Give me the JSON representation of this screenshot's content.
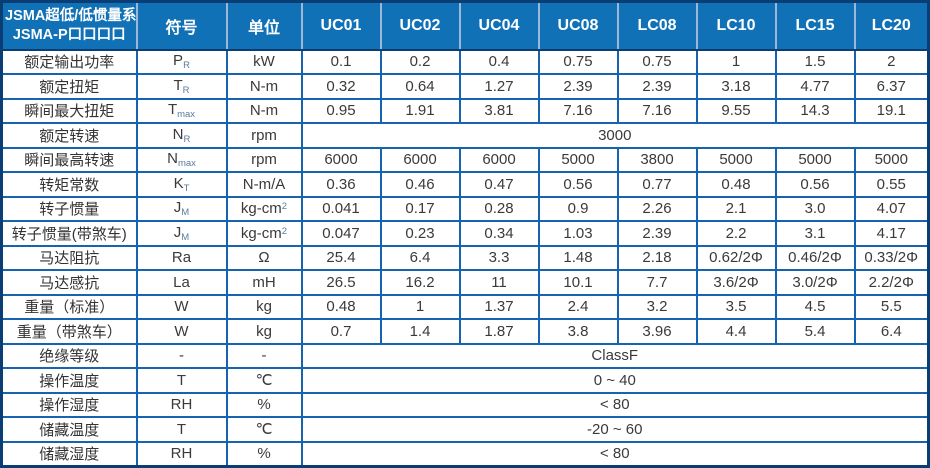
{
  "table": {
    "header": {
      "title_line1": "JSMA超低/低惯量系列",
      "title_line2": "JSMA-P口口口口",
      "symbol_col": "符号",
      "unit_col": "单位",
      "models": [
        "UC01",
        "UC02",
        "UC04",
        "UC08",
        "LC08",
        "LC10",
        "LC15",
        "LC20"
      ]
    },
    "rows": [
      {
        "param": "额定输出功率",
        "symbol": {
          "base": "P",
          "sub": "R"
        },
        "unit": "kW",
        "values": [
          "0.1",
          "0.2",
          "0.4",
          "0.75",
          "0.75",
          "1",
          "1.5",
          "2"
        ]
      },
      {
        "param": "额定扭矩",
        "symbol": {
          "base": "T",
          "sub": "R"
        },
        "unit": "N-m",
        "values": [
          "0.32",
          "0.64",
          "1.27",
          "2.39",
          "2.39",
          "3.18",
          "4.77",
          "6.37"
        ]
      },
      {
        "param": "瞬间最大扭矩",
        "symbol": {
          "base": "T",
          "sub": "max"
        },
        "unit": "N-m",
        "values": [
          "0.95",
          "1.91",
          "3.81",
          "7.16",
          "7.16",
          "9.55",
          "14.3",
          "19.1"
        ]
      },
      {
        "param": "额定转速",
        "symbol": {
          "base": "N",
          "sub": "R"
        },
        "unit": "rpm",
        "merged": "3000"
      },
      {
        "param": "瞬间最高转速",
        "symbol": {
          "base": "N",
          "sub": "max"
        },
        "unit": "rpm",
        "values": [
          "6000",
          "6000",
          "6000",
          "5000",
          "3800",
          "5000",
          "5000",
          "5000"
        ]
      },
      {
        "param": "转矩常数",
        "symbol": {
          "base": "K",
          "sub": "T"
        },
        "unit": "N-m/A",
        "values": [
          "0.36",
          "0.46",
          "0.47",
          "0.56",
          "0.77",
          "0.48",
          "0.56",
          "0.55"
        ]
      },
      {
        "param": "转子惯量",
        "symbol": {
          "base": "J",
          "sub": "M"
        },
        "unit": "kg-cm",
        "unit_sup": "2",
        "values": [
          "0.041",
          "0.17",
          "0.28",
          "0.9",
          "2.26",
          "2.1",
          "3.0",
          "4.07"
        ]
      },
      {
        "param": "转子惯量(带煞车)",
        "symbol": {
          "base": "J",
          "sub": "M"
        },
        "unit": "kg-cm",
        "unit_sup": "2",
        "values": [
          "0.047",
          "0.23",
          "0.34",
          "1.03",
          "2.39",
          "2.2",
          "3.1",
          "4.17"
        ]
      },
      {
        "param": "马达阻抗",
        "symbol": {
          "base": "Ra"
        },
        "unit": "Ω",
        "values": [
          "25.4",
          "6.4",
          "3.3",
          "1.48",
          "2.18",
          "0.62/2Φ",
          "0.46/2Φ",
          "0.33/2Φ"
        ]
      },
      {
        "param": "马达感抗",
        "symbol": {
          "base": "La"
        },
        "unit": "mH",
        "values": [
          "26.5",
          "16.2",
          "11",
          "10.1",
          "7.7",
          "3.6/2Φ",
          "3.0/2Φ",
          "2.2/2Φ"
        ]
      },
      {
        "param": "重量（标准）",
        "symbol": {
          "base": "W"
        },
        "unit": "kg",
        "values": [
          "0.48",
          "1",
          "1.37",
          "2.4",
          "3.2",
          "3.5",
          "4.5",
          "5.5"
        ]
      },
      {
        "param": "重量（带煞车）",
        "symbol": {
          "base": "W"
        },
        "unit": "kg",
        "values": [
          "0.7",
          "1.4",
          "1.87",
          "3.8",
          "3.96",
          "4.4",
          "5.4",
          "6.4"
        ]
      },
      {
        "param": "绝缘等级",
        "symbol": {
          "base": "-"
        },
        "unit": "-",
        "merged": "ClassF"
      },
      {
        "param": "操作温度",
        "symbol": {
          "base": "T"
        },
        "unit": "℃",
        "merged": "0 ~ 40"
      },
      {
        "param": "操作湿度",
        "symbol": {
          "base": "RH"
        },
        "unit": "%",
        "merged": "< 80"
      },
      {
        "param": "储藏温度",
        "symbol": {
          "base": "T"
        },
        "unit": "℃",
        "merged": "-20 ~ 60"
      },
      {
        "param": "储藏湿度",
        "symbol": {
          "base": "RH"
        },
        "unit": "%",
        "merged": "< 80"
      }
    ],
    "colors": {
      "header_bg": "#1171b7",
      "header_text": "#ffffff",
      "grid_line": "#1663b0",
      "outer_border": "#0a3d73",
      "header_divider": "#9db8d6",
      "subscript": "#5d7b9d",
      "body_text": "#3a3a3a"
    }
  }
}
